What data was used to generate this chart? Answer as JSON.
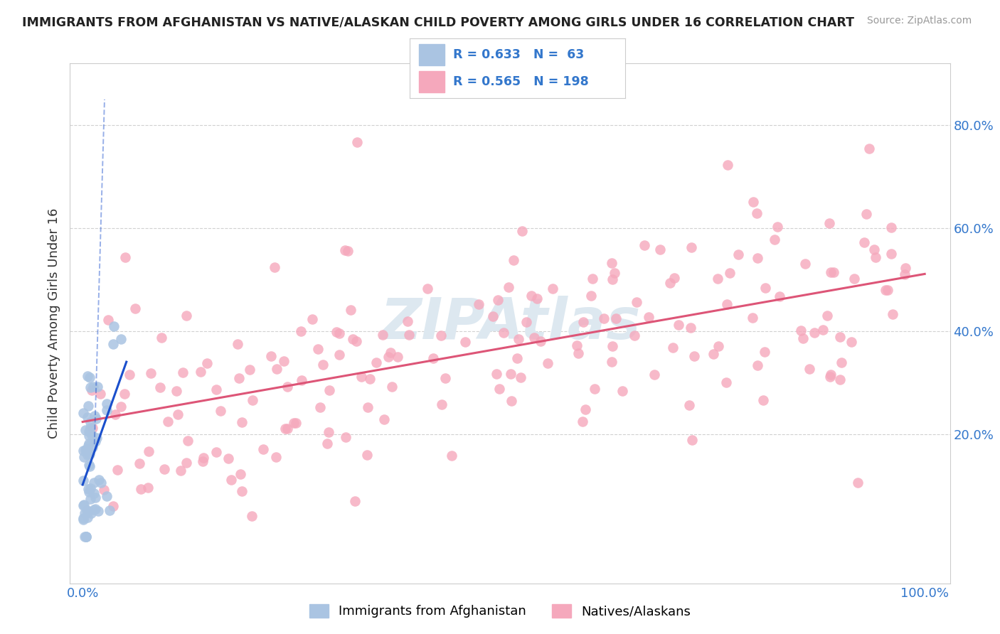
{
  "title": "IMMIGRANTS FROM AFGHANISTAN VS NATIVE/ALASKAN CHILD POVERTY AMONG GIRLS UNDER 16 CORRELATION CHART",
  "source": "Source: ZipAtlas.com",
  "ylabel": "Child Poverty Among Girls Under 16",
  "r_blue": 0.633,
  "n_blue": 63,
  "r_pink": 0.565,
  "n_pink": 198,
  "legend_labels": [
    "Immigrants from Afghanistan",
    "Natives/Alaskans"
  ],
  "blue_color": "#aac4e2",
  "pink_color": "#f5a8bc",
  "blue_line_color": "#1a4fcc",
  "pink_line_color": "#dd5577",
  "watermark": "ZIPAtlas",
  "watermark_color": "#dde8f0",
  "tick_color": "#3377cc",
  "background": "#ffffff",
  "yticks": [
    0.2,
    0.4,
    0.6,
    0.8
  ],
  "ytick_labels": [
    "20.0%",
    "40.0%",
    "60.0%",
    "80.0%"
  ],
  "xtick_labels": [
    "0.0%",
    "100.0%"
  ],
  "blue_seed": 7,
  "pink_seed": 42,
  "xlim": [
    -0.015,
    1.03
  ],
  "ylim": [
    -0.09,
    0.92
  ]
}
